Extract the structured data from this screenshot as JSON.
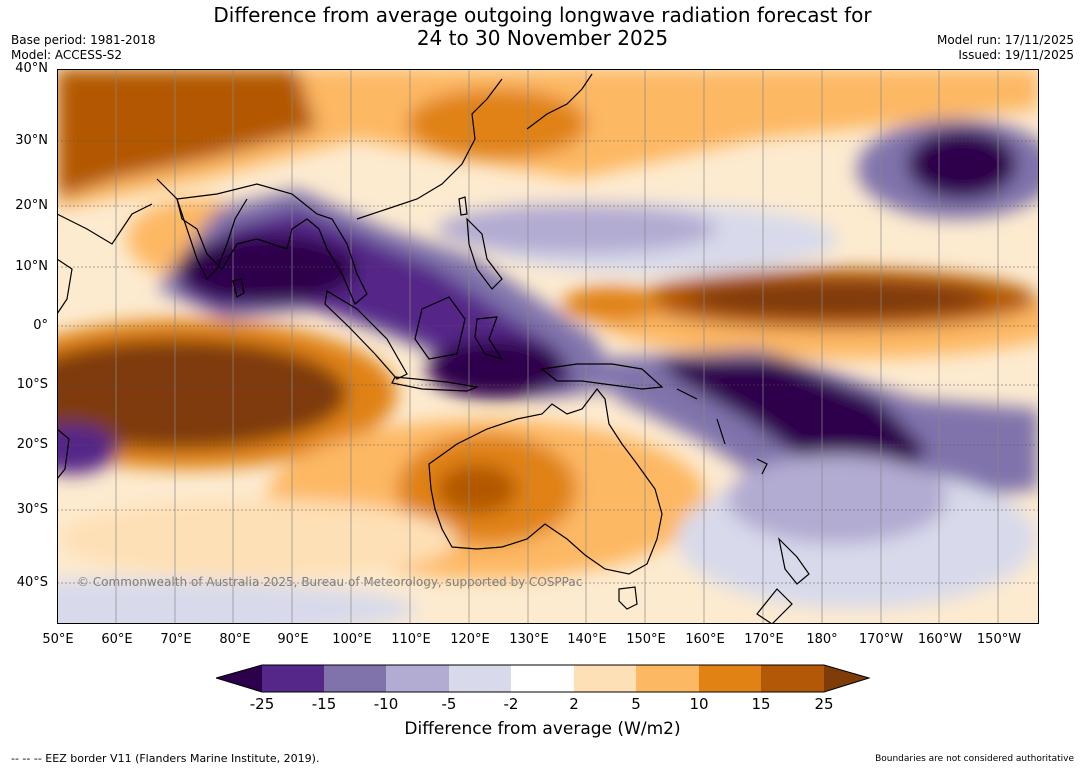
{
  "title": {
    "line1": "Difference from average outgoing longwave radiation forecast for",
    "line2": "24 to 30 November 2025"
  },
  "meta": {
    "base_period": "Base period: 1981-2018",
    "model": "Model: ACCESS-S2",
    "model_run": "Model run: 17/11/2025",
    "issued": "Issued: 19/11/2025"
  },
  "map": {
    "region": "Indian Ocean – Maritime Continent – Western/Central Pacific",
    "copyright": "© Commonwealth of Australia 2025, Bureau of Meteorology, supported by COSPPac",
    "lat_labels": [
      "40°N",
      "30°N",
      "20°N",
      "10°N",
      "0°",
      "10°S",
      "20°S",
      "30°S",
      "40°S"
    ],
    "lon_labels": [
      "50°E",
      "60°E",
      "70°E",
      "80°E",
      "90°E",
      "100°E",
      "110°E",
      "120°E",
      "130°E",
      "140°E",
      "150°E",
      "160°E",
      "170°E",
      "180°",
      "170°W",
      "160°W",
      "150°W"
    ],
    "lat_values": [
      40,
      30,
      20,
      10,
      0,
      -10,
      -20,
      -30,
      -40
    ],
    "lon_values": [
      50,
      60,
      70,
      80,
      90,
      100,
      110,
      120,
      130,
      140,
      150,
      160,
      170,
      180,
      190,
      200,
      210
    ],
    "extent": {
      "lon_min": 50,
      "lon_max": 217,
      "lat_min": -46,
      "lat_max": 40
    }
  },
  "colorbar": {
    "ticks": [
      "-25",
      "-15",
      "-10",
      "-5",
      "-2",
      "2",
      "5",
      "10",
      "15",
      "25"
    ],
    "colors": [
      "#2d004b",
      "#542788",
      "#8073ac",
      "#b2abd2",
      "#d8daeb",
      "#ffffff",
      "#fee0b6",
      "#fdb863",
      "#e08214",
      "#b35806",
      "#7f3b08"
    ],
    "label": "Difference from average (W/m2)",
    "unit": "W/m2"
  },
  "footer": {
    "eez_legend": "--  --  -- EEZ border V11 (Flanders Marine Institute, 2019).",
    "boundaries_note": "Boundaries are not considered authoritative"
  }
}
